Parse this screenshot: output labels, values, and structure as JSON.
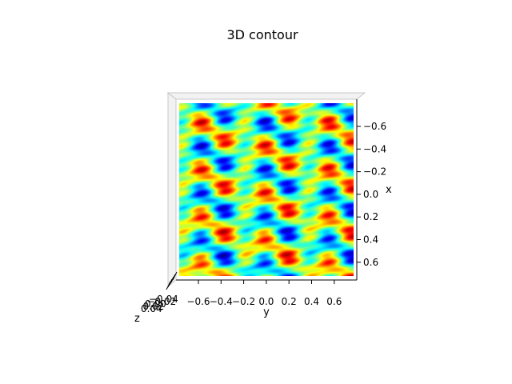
{
  "chart_data": {
    "type": "heatmap",
    "title": "3D contour",
    "xlabel": "x",
    "ylabel": "y",
    "zlabel": "z",
    "colormap": "jet",
    "view": "top-down (elev 90)",
    "x_ticks": [
      "−0.6",
      "−0.4",
      "−0.2",
      "0.0",
      "0.2",
      "0.4",
      "0.6"
    ],
    "y_ticks": [
      "−0.6",
      "−0.4",
      "−0.2",
      "0.0",
      "0.2",
      "0.4",
      "0.6"
    ],
    "z_ticks": [
      "0.04",
      "0.02",
      "0.00",
      "−0.02",
      "−0.04"
    ],
    "xlim": [
      -0.75,
      0.75
    ],
    "ylim": [
      -0.75,
      0.75
    ],
    "zlim": [
      -0.05,
      0.05
    ],
    "wave_pattern": {
      "x_frequency": 6.0,
      "y_frequency": 6.0,
      "description": "periodic diagonal streaks, peaks at (x=0,y=0), (x=-0.6,y=-0.55), (x=-0.6,y=0.5), (x=0.6,y=-0.55), (x=0.6,y=0.5)"
    }
  }
}
